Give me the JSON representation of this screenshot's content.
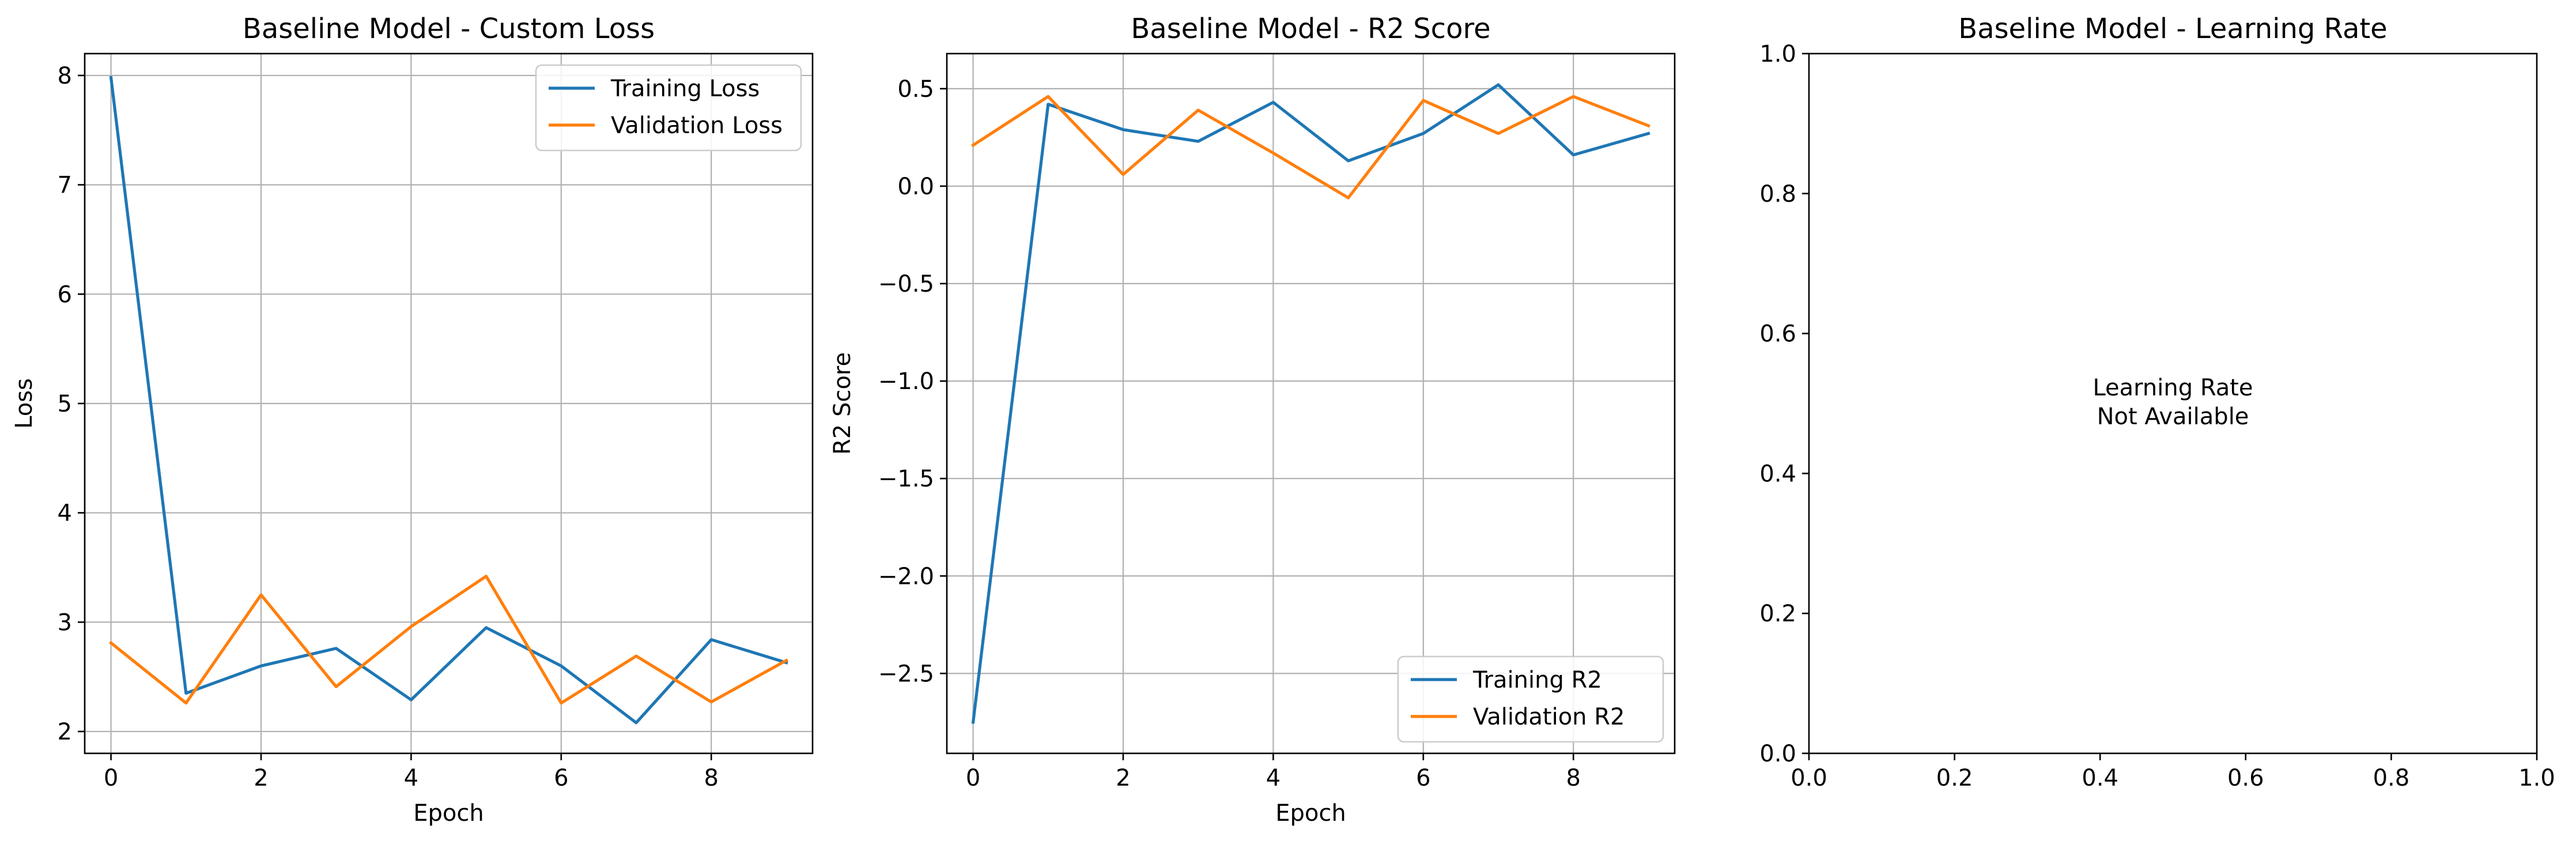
{
  "chart_data": [
    {
      "type": "line",
      "title": "Baseline Model - Custom Loss",
      "xlabel": "Epoch",
      "ylabel": "Loss",
      "x": [
        0,
        1,
        2,
        3,
        4,
        5,
        6,
        7,
        8,
        9
      ],
      "xlim": [
        -0.35,
        9.35
      ],
      "ylim": [
        1.8,
        8.2
      ],
      "xticks": [
        0,
        2,
        4,
        6,
        8
      ],
      "yticks": [
        2,
        3,
        4,
        5,
        6,
        7,
        8
      ],
      "grid": true,
      "legend_position": "upper right",
      "series": [
        {
          "name": "Training Loss",
          "color": "#1f77b4",
          "values": [
            7.98,
            2.35,
            2.6,
            2.76,
            2.29,
            2.95,
            2.6,
            2.08,
            2.84,
            2.63
          ]
        },
        {
          "name": "Validation Loss",
          "color": "#ff7f0e",
          "values": [
            2.81,
            2.26,
            3.25,
            2.41,
            2.96,
            3.42,
            2.26,
            2.69,
            2.27,
            2.65
          ]
        }
      ]
    },
    {
      "type": "line",
      "title": "Baseline Model - R2 Score",
      "xlabel": "Epoch",
      "ylabel": "R2 Score",
      "x": [
        0,
        1,
        2,
        3,
        4,
        5,
        6,
        7,
        8,
        9
      ],
      "xlim": [
        -0.35,
        9.35
      ],
      "ylim": [
        -2.91,
        0.68
      ],
      "xticks": [
        0,
        2,
        4,
        6,
        8
      ],
      "yticks": [
        -2.5,
        -2.0,
        -1.5,
        -1.0,
        -0.5,
        0.0,
        0.5
      ],
      "ytick_labels": [
        "−2.5",
        "−2.0",
        "−1.5",
        "−1.0",
        "−0.5",
        "0.0",
        "0.5"
      ],
      "grid": true,
      "legend_position": "lower right",
      "series": [
        {
          "name": "Training R2",
          "color": "#1f77b4",
          "values": [
            -2.75,
            0.42,
            0.29,
            0.23,
            0.43,
            0.13,
            0.27,
            0.52,
            0.16,
            0.27
          ]
        },
        {
          "name": "Validation R2",
          "color": "#ff7f0e",
          "values": [
            0.21,
            0.46,
            0.06,
            0.39,
            0.17,
            -0.06,
            0.44,
            0.27,
            0.46,
            0.31
          ]
        }
      ]
    },
    {
      "type": "line",
      "title": "Baseline Model - Learning Rate",
      "xlim": [
        0,
        1
      ],
      "ylim": [
        0,
        1
      ],
      "xticks": [
        0.0,
        0.2,
        0.4,
        0.6,
        0.8,
        1.0
      ],
      "yticks": [
        0.0,
        0.2,
        0.4,
        0.6,
        0.8,
        1.0
      ],
      "xtick_labels": [
        "0.0",
        "0.2",
        "0.4",
        "0.6",
        "0.8",
        "1.0"
      ],
      "ytick_labels": [
        "0.0",
        "0.2",
        "0.4",
        "0.6",
        "0.8",
        "1.0"
      ],
      "grid": false,
      "annotation": [
        "Learning Rate",
        "Not Available"
      ],
      "series": []
    }
  ]
}
